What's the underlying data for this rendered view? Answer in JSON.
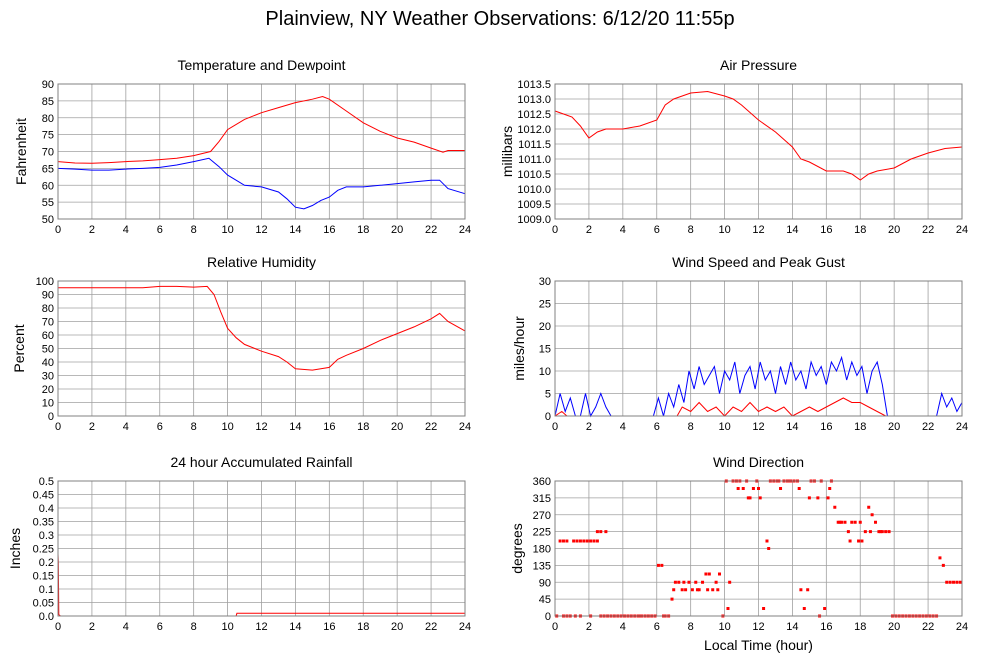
{
  "page": {
    "title": "Plainview, NY Weather Observations: 6/12/20 11:55p"
  },
  "colors": {
    "series_red": "#ff0000",
    "series_blue": "#0000ff",
    "grid": "#a0a0a0",
    "frame": "#808080"
  },
  "chart_data": [
    {
      "id": "temperature",
      "type": "line",
      "title": "Temperature and Dewpoint",
      "xlabel": "",
      "ylabel": "Fahrenheit",
      "xlim": [
        0,
        24
      ],
      "ylim": [
        50,
        90
      ],
      "x_ticks": [
        0,
        2,
        4,
        6,
        8,
        10,
        12,
        14,
        16,
        18,
        20,
        22,
        24
      ],
      "y_ticks": [
        50,
        55,
        60,
        65,
        70,
        75,
        80,
        85,
        90
      ],
      "grid": true,
      "series": [
        {
          "color": "#ff0000",
          "x": [
            0,
            1,
            2,
            3,
            4,
            5,
            6,
            7,
            8,
            9,
            9.5,
            10,
            11,
            12,
            13,
            14,
            15,
            15.6,
            16,
            17,
            18,
            19,
            20,
            21,
            22,
            22.7,
            23,
            24
          ],
          "y": [
            67,
            66.6,
            66.5,
            66.7,
            67,
            67.2,
            67.6,
            68,
            68.8,
            70,
            73,
            76.5,
            79.5,
            81.5,
            83,
            84.5,
            85.5,
            86.3,
            85.5,
            82,
            78.5,
            76,
            74,
            72.8,
            71,
            69.8,
            70.3,
            70.3
          ]
        },
        {
          "color": "#0000ff",
          "x": [
            0,
            1,
            2,
            3,
            4,
            5,
            6,
            7,
            8,
            8.9,
            9.5,
            10,
            10.5,
            11,
            12,
            13,
            13.5,
            14,
            14.5,
            15,
            15.5,
            16,
            16.5,
            17,
            18,
            19,
            20,
            21,
            22,
            22.5,
            23,
            24
          ],
          "y": [
            65,
            64.8,
            64.5,
            64.5,
            64.8,
            65,
            65.3,
            66,
            67,
            68,
            65.5,
            63,
            61.5,
            60,
            59.5,
            58,
            56,
            53.5,
            53,
            54,
            55.5,
            56.5,
            58.5,
            59.5,
            59.5,
            60,
            60.5,
            61,
            61.5,
            61.5,
            59,
            57.5
          ]
        }
      ]
    },
    {
      "id": "pressure",
      "type": "line",
      "title": "Air Pressure",
      "xlabel": "",
      "ylabel": "millibars",
      "xlim": [
        0,
        24
      ],
      "ylim": [
        1009.0,
        1013.5
      ],
      "x_ticks": [
        0,
        2,
        4,
        6,
        8,
        10,
        12,
        14,
        16,
        18,
        20,
        22,
        24
      ],
      "y_ticks": [
        "1009.0",
        "1009.5",
        "1010.0",
        "1010.5",
        "1011.0",
        "1011.5",
        "1012.0",
        "1012.5",
        "1013.0",
        "1013.5"
      ],
      "grid": true,
      "series": [
        {
          "color": "#ff0000",
          "x": [
            0,
            0.5,
            1,
            1.5,
            2,
            2.5,
            3,
            4,
            5,
            6,
            6.5,
            7,
            8,
            9,
            10,
            10.5,
            11,
            12,
            13,
            14,
            14.5,
            15,
            16,
            17,
            17.5,
            18,
            18.5,
            19,
            20,
            21,
            22,
            23,
            24
          ],
          "y": [
            1012.6,
            1012.5,
            1012.4,
            1012.1,
            1011.7,
            1011.9,
            1012.0,
            1012.0,
            1012.1,
            1012.3,
            1012.8,
            1013.0,
            1013.2,
            1013.25,
            1013.1,
            1013.0,
            1012.8,
            1012.3,
            1011.9,
            1011.4,
            1011.0,
            1010.9,
            1010.6,
            1010.6,
            1010.5,
            1010.3,
            1010.5,
            1010.6,
            1010.7,
            1011.0,
            1011.2,
            1011.35,
            1011.4
          ]
        }
      ]
    },
    {
      "id": "humidity",
      "type": "line",
      "title": "Relative Humidity",
      "xlabel": "",
      "ylabel": "Percent",
      "xlim": [
        0,
        24
      ],
      "ylim": [
        0,
        100
      ],
      "x_ticks": [
        0,
        2,
        4,
        6,
        8,
        10,
        12,
        14,
        16,
        18,
        20,
        22,
        24
      ],
      "y_ticks": [
        0,
        10,
        20,
        30,
        40,
        50,
        60,
        70,
        80,
        90,
        100
      ],
      "grid": true,
      "series": [
        {
          "color": "#ff0000",
          "x": [
            0,
            2,
            4,
            5,
            6,
            7,
            8,
            8.8,
            9.2,
            9.6,
            10,
            10.5,
            11,
            12,
            13,
            13.5,
            14,
            15,
            16,
            16.5,
            17,
            18,
            19,
            20,
            21,
            22,
            22.5,
            23,
            24
          ],
          "y": [
            95,
            95,
            95,
            95,
            96,
            96,
            95.5,
            96,
            90,
            77,
            65,
            58,
            53,
            48,
            44,
            40,
            35,
            34,
            36,
            42,
            45,
            50,
            56,
            61,
            66,
            72,
            76,
            70,
            63
          ]
        }
      ]
    },
    {
      "id": "wind-speed",
      "type": "line",
      "title": "Wind Speed and Peak Gust",
      "xlabel": "",
      "ylabel": "miles/hour",
      "xlim": [
        0,
        24
      ],
      "ylim": [
        0,
        30
      ],
      "x_ticks": [
        0,
        2,
        4,
        6,
        8,
        10,
        12,
        14,
        16,
        18,
        20,
        22,
        24
      ],
      "y_ticks": [
        0,
        5,
        10,
        15,
        20,
        25,
        30
      ],
      "grid": true,
      "series": [
        {
          "color": "#0000ff",
          "x": [
            0,
            0.3,
            0.6,
            0.9,
            1.2,
            1.5,
            1.8,
            2.1,
            2.4,
            2.7,
            3.0,
            3.3,
            4,
            5,
            5.8,
            6.1,
            6.4,
            6.7,
            7.0,
            7.3,
            7.6,
            7.9,
            8.2,
            8.5,
            8.8,
            9.1,
            9.4,
            9.7,
            10.0,
            10.3,
            10.6,
            10.9,
            11.2,
            11.5,
            11.8,
            12.1,
            12.4,
            12.7,
            13.0,
            13.3,
            13.6,
            13.9,
            14.2,
            14.5,
            14.8,
            15.1,
            15.4,
            15.7,
            16.0,
            16.3,
            16.6,
            16.9,
            17.2,
            17.5,
            17.8,
            18.1,
            18.4,
            18.7,
            19.0,
            19.3,
            19.6,
            20,
            21,
            22.5,
            22.8,
            23.1,
            23.4,
            23.7,
            24
          ],
          "y": [
            0,
            5,
            1,
            4,
            0,
            0,
            5,
            0,
            2,
            5,
            2,
            0,
            0,
            0,
            0,
            4,
            0,
            5,
            2,
            7,
            3,
            10,
            6,
            11,
            7,
            9,
            11,
            5,
            10,
            8,
            12,
            5,
            9,
            11,
            6,
            12,
            8,
            10,
            5,
            11,
            7,
            12,
            8,
            10,
            6,
            12,
            9,
            11,
            7,
            12,
            10,
            13,
            8,
            12,
            9,
            11,
            5,
            10,
            12,
            7,
            0,
            0,
            0,
            0,
            5,
            2,
            4,
            1,
            3
          ]
        },
        {
          "color": "#ff0000",
          "x": [
            0,
            0.4,
            0.7,
            1,
            3,
            6,
            7.2,
            7.5,
            8,
            8.5,
            9,
            9.5,
            10,
            10.5,
            11,
            11.5,
            12,
            12.5,
            13,
            13.5,
            14,
            14.5,
            15,
            15.5,
            16,
            16.5,
            17,
            17.5,
            18,
            18.5,
            19,
            19.5,
            20,
            24
          ],
          "y": [
            0,
            1,
            0,
            0,
            0,
            0,
            0,
            2,
            1,
            3,
            1,
            2,
            0,
            2,
            1,
            3,
            1,
            2,
            1,
            2,
            0,
            1,
            2,
            1,
            2,
            3,
            4,
            3,
            3,
            2,
            1,
            0,
            0,
            0
          ]
        }
      ]
    },
    {
      "id": "rainfall",
      "type": "line",
      "title": "24 hour Accumulated Rainfall",
      "xlabel": "",
      "ylabel": "Inches",
      "xlim": [
        0,
        24
      ],
      "ylim": [
        0,
        0.5
      ],
      "x_ticks": [
        0,
        2,
        4,
        6,
        8,
        10,
        12,
        14,
        16,
        18,
        20,
        22,
        24
      ],
      "y_ticks": [
        "0.0",
        "0.05",
        "0.1",
        "0.15",
        "0.2",
        "0.25",
        "0.3",
        "0.35",
        "0.4",
        "0.45",
        "0.5"
      ],
      "grid": true,
      "series": [
        {
          "color": "#ff0000",
          "x": [
            0,
            0.02,
            0.05,
            0.15,
            10.5,
            10.55,
            24
          ],
          "y": [
            0.23,
            0.2,
            0.005,
            0,
            0,
            0.01,
            0.01
          ]
        }
      ]
    },
    {
      "id": "wind-direction",
      "type": "scatter",
      "title": "Wind Direction",
      "xlabel": "Local Time (hour)",
      "ylabel": "degrees",
      "xlim": [
        0,
        24
      ],
      "ylim": [
        0,
        360
      ],
      "x_ticks": [
        0,
        2,
        4,
        6,
        8,
        10,
        12,
        14,
        16,
        18,
        20,
        22,
        24
      ],
      "y_ticks": [
        0,
        45,
        90,
        135,
        180,
        225,
        270,
        315,
        360
      ],
      "grid": true,
      "series": [
        {
          "color": "#ff0000",
          "x": [
            0.1,
            0.3,
            0.5,
            0.7,
            0.9,
            1.1,
            1.3,
            1.5,
            1.7,
            1.9,
            2.1,
            2.3,
            2.5,
            2.7,
            2.9,
            3.1,
            3.3,
            3.5,
            3.7,
            3.9,
            4.1,
            4.3,
            4.5,
            4.7,
            4.9,
            5.1,
            5.3,
            5.5,
            5.7,
            5.9,
            6.1,
            6.3,
            6.5,
            6.7,
            6.9,
            7.1,
            7.3,
            7.5,
            7.7,
            7.9,
            8.1,
            8.3,
            8.5,
            8.7,
            8.9,
            9.1,
            9.3,
            9.5,
            9.7,
            9.9,
            10.1,
            10.3,
            10.5,
            10.7,
            10.9,
            11.1,
            11.3,
            11.5,
            11.7,
            11.9,
            12.1,
            12.3,
            12.5,
            12.7,
            12.9,
            13.1,
            13.3,
            13.5,
            13.7,
            13.9,
            14.1,
            14.3,
            14.5,
            14.7,
            14.9,
            15.1,
            15.3,
            15.5,
            15.7,
            15.9,
            16.1,
            16.3,
            16.5,
            16.7,
            16.9,
            17.1,
            17.3,
            17.5,
            17.7,
            17.9,
            18.1,
            18.3,
            18.5,
            18.7,
            18.9,
            19.1,
            19.3,
            19.5,
            19.7,
            19.9,
            20.1,
            20.3,
            20.5,
            20.7,
            20.9,
            21.1,
            21.3,
            21.5,
            21.7,
            21.9,
            22.1,
            22.3,
            22.5,
            22.7,
            22.9,
            23.1,
            23.3,
            23.5,
            23.7,
            23.9,
            0.5,
            0.7,
            1.2,
            1.5,
            2.1,
            2.5,
            2.7,
            3.0,
            4.3,
            5.0,
            5.5,
            6.4,
            7.0,
            7.6,
            8.4,
            9.0,
            9.6,
            10.2,
            10.8,
            11.4,
            12.0,
            12.6,
            13.2,
            13.8,
            14.4,
            15.0,
            15.6,
            16.2,
            16.8,
            17.4,
            18.0,
            18.6,
            19.2
          ],
          "y": [
            0,
            200,
            200,
            0,
            0,
            200,
            200,
            0,
            200,
            200,
            200,
            200,
            225,
            225,
            0,
            0,
            0,
            0,
            0,
            0,
            0,
            0,
            0,
            0,
            0,
            0,
            0,
            0,
            0,
            0,
            135,
            135,
            0,
            0,
            45,
            90,
            90,
            70,
            70,
            90,
            70,
            90,
            70,
            90,
            112,
            112,
            70,
            90,
            112,
            0,
            360,
            90,
            360,
            360,
            360,
            340,
            360,
            315,
            340,
            360,
            315,
            20,
            200,
            360,
            360,
            360,
            340,
            360,
            360,
            360,
            360,
            360,
            70,
            20,
            70,
            360,
            360,
            315,
            360,
            20,
            315,
            360,
            290,
            250,
            250,
            250,
            225,
            250,
            250,
            200,
            200,
            225,
            290,
            270,
            250,
            225,
            225,
            225,
            225,
            0,
            0,
            0,
            0,
            0,
            0,
            0,
            0,
            0,
            0,
            0,
            0,
            0,
            0,
            155,
            135,
            90,
            90,
            90,
            90,
            90,
            0,
            200,
            0,
            200,
            0,
            200,
            0,
            225,
            0,
            0,
            0,
            0,
            70,
            90,
            70,
            70,
            70,
            20,
            340,
            315,
            340,
            180,
            360,
            360,
            340,
            315,
            0,
            340,
            250,
            200,
            250,
            225,
            225
          ]
        }
      ]
    }
  ]
}
